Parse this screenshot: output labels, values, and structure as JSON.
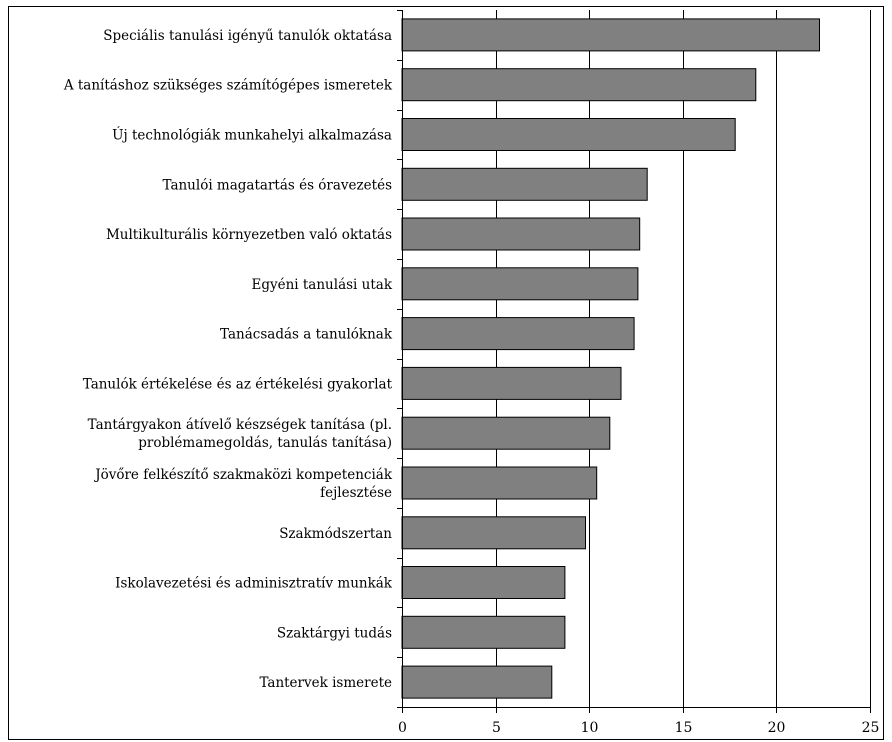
{
  "chart_data": {
    "type": "bar",
    "orientation": "horizontal",
    "title": "",
    "xlabel": "",
    "ylabel": "",
    "xlim": [
      0,
      25
    ],
    "x_ticks": [
      "0",
      "5",
      "10",
      "15",
      "20",
      "25"
    ],
    "grid": "vertical lines at 5, 10, 15, 20",
    "bar_color": "#808080",
    "categories": [
      [
        "Speciális tanulási igényű tanulók oktatása"
      ],
      [
        "A tanításhoz szükséges számítógépes ismeretek"
      ],
      [
        "Új technológiák munkahelyi alkalmazása"
      ],
      [
        "Tanulói magatartás és óravezetés"
      ],
      [
        "Multikulturális környezetben való oktatás"
      ],
      [
        "Egyéni tanulási utak"
      ],
      [
        "Tanácsadás a tanulóknak"
      ],
      [
        "Tanulók értékelése és az értékelési gyakorlat"
      ],
      [
        "Tantárgyakon átívelő készségek tanítása (pl.",
        "problémamegoldás, tanulás tanítása)"
      ],
      [
        "Jövőre felkészítő szakmaközi kompetenciák",
        "fejlesztése"
      ],
      [
        "Szakmódszertan"
      ],
      [
        "Iskolavezetési és adminisztratív munkák"
      ],
      [
        "Szaktárgyi tudás"
      ],
      [
        "Tantervek ismerete"
      ]
    ],
    "values": [
      22.3,
      18.9,
      17.8,
      13.1,
      12.7,
      12.6,
      12.4,
      11.7,
      11.1,
      10.4,
      9.8,
      8.7,
      8.7,
      8.0
    ]
  }
}
